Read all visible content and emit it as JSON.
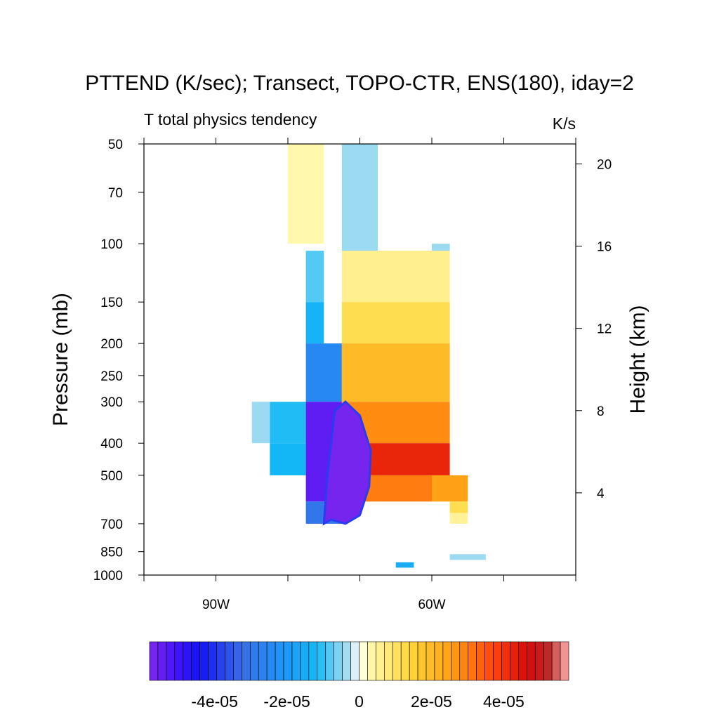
{
  "chart_data": {
    "type": "heatmap",
    "title": "PTTEND (K/sec); Transect, TOPO-CTR, ENS(180), iday=2",
    "subtitle_left": "T total physics tendency",
    "subtitle_right": "K/s",
    "ylabel": "Pressure (mb)",
    "ylabel_right": "Height (km)",
    "x_ticks": [
      {
        "value": -100,
        "label": ""
      },
      {
        "value": -90,
        "label": "90W"
      },
      {
        "value": -80,
        "label": ""
      },
      {
        "value": -70,
        "label": ""
      },
      {
        "value": -60,
        "label": "60W"
      },
      {
        "value": -50,
        "label": ""
      },
      {
        "value": -40,
        "label": ""
      }
    ],
    "xlim": [
      -100,
      -40
    ],
    "ylim_mb": [
      1000,
      50
    ],
    "y_ticks_mb": [
      "50",
      "70",
      "100",
      "150",
      "200",
      "250",
      "300",
      "400",
      "500",
      "700",
      "850",
      "1000"
    ],
    "y_ticks_km": [
      "20",
      "16",
      "12",
      "8",
      "4"
    ],
    "colorbar": {
      "min": -5.8e-05,
      "max": 5.8e-05,
      "levels": 50,
      "tick_labels": [
        "-4e-05",
        "-2e-05",
        "0",
        "2e-05",
        "4e-05"
      ],
      "tick_values": [
        -4e-05,
        -2e-05,
        0,
        2e-05,
        4e-05
      ]
    },
    "cells": [
      {
        "lon": [
          -80,
          -75
        ],
        "p": [
          100,
          50
        ],
        "value": 3e-06
      },
      {
        "lon": [
          -72.5,
          -67.5
        ],
        "p": [
          105,
          50
        ],
        "value": -4e-06
      },
      {
        "lon": [
          -60,
          -57.5
        ],
        "p": [
          105,
          100
        ],
        "value": -4e-06
      },
      {
        "lon": [
          -77.5,
          -75
        ],
        "p": [
          150,
          105
        ],
        "value": -8e-06
      },
      {
        "lon": [
          -77.5,
          -75
        ],
        "p": [
          200,
          150
        ],
        "value": -1.3e-05
      },
      {
        "lon": [
          -72.5,
          -57.5
        ],
        "p": [
          150,
          105
        ],
        "value": 6e-06
      },
      {
        "lon": [
          -72.5,
          -57.5
        ],
        "p": [
          200,
          150
        ],
        "value": 1.2e-05
      },
      {
        "lon": [
          -77.5,
          -72.5
        ],
        "p": [
          300,
          200
        ],
        "value": -2.5e-05
      },
      {
        "lon": [
          -72.5,
          -57.5
        ],
        "p": [
          300,
          200
        ],
        "value": 2e-05
      },
      {
        "lon": [
          -85,
          -82.5
        ],
        "p": [
          400,
          300
        ],
        "value": -4e-06
      },
      {
        "lon": [
          -82.5,
          -77.5
        ],
        "p": [
          400,
          300
        ],
        "value": -1.1e-05
      },
      {
        "lon": [
          -82.5,
          -77.5
        ],
        "p": [
          500,
          400
        ],
        "value": -1.2e-05
      },
      {
        "lon": [
          -77.5,
          -72.5
        ],
        "p": [
          600,
          300
        ],
        "value": -5.4e-05
      },
      {
        "lon": [
          -77.5,
          -72.5
        ],
        "p": [
          700,
          600
        ],
        "value": -3e-05
      },
      {
        "lon": [
          -72.5,
          -57.5
        ],
        "p": [
          400,
          300
        ],
        "value": 2.8e-05
      },
      {
        "lon": [
          -72.5,
          -57.5
        ],
        "p": [
          500,
          400
        ],
        "value": 4.2e-05
      },
      {
        "lon": [
          -72.5,
          -60
        ],
        "p": [
          600,
          500
        ],
        "value": 3e-05
      },
      {
        "lon": [
          -60,
          -55
        ],
        "p": [
          600,
          500
        ],
        "value": 2.5e-05
      },
      {
        "lon": [
          -57.5,
          -55
        ],
        "p": [
          650,
          600
        ],
        "value": 1.2e-05
      },
      {
        "lon": [
          -57.5,
          -55
        ],
        "p": [
          700,
          650
        ],
        "value": 5e-06
      },
      {
        "lon": [
          -65,
          -62.5
        ],
        "p": [
          950,
          915
        ],
        "value": -1.5e-05
      },
      {
        "lon": [
          -57.5,
          -52.5
        ],
        "p": [
          900,
          865
        ],
        "value": -4e-06
      }
    ]
  }
}
